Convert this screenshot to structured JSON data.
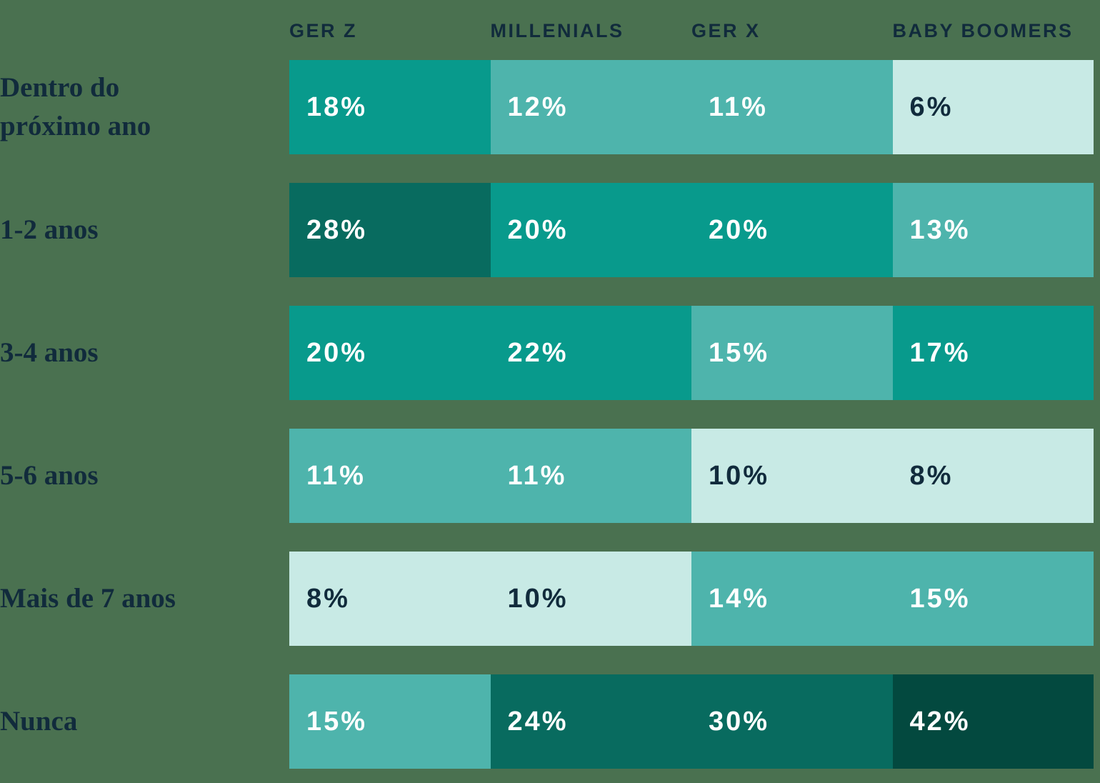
{
  "palette": {
    "background": "#4A7150",
    "ink": "#112B3C",
    "value_text_light": "#FFFFFF",
    "scale": {
      "lightest": "#C8EAE5",
      "light": "#4EB4AC",
      "medium": "#089A8C",
      "dark": "#086B5F",
      "darkest": "#03493F"
    },
    "text_on": {
      "lightest": "#112B3C",
      "light": "#FFFFFF",
      "medium": "#FFFFFF",
      "dark": "#FFFFFF",
      "darkest": "#FFFFFF"
    }
  },
  "header": {
    "columns": [
      "GER Z",
      "MILLENIALS",
      "GER X",
      "BABY BOOMERS"
    ]
  },
  "rows": [
    {
      "label": "Dentro do\npróximo ano"
    },
    {
      "label": "1-2 anos"
    },
    {
      "label": "3-4 anos"
    },
    {
      "label": "5-6 anos"
    },
    {
      "label": "Mais de 7 anos"
    },
    {
      "label": "Nunca"
    }
  ],
  "chart_data": {
    "type": "heatmap",
    "columns": [
      "GER Z",
      "MILLENIALS",
      "GER X",
      "BABY BOOMERS"
    ],
    "rows": [
      "Dentro do próximo ano",
      "1-2 anos",
      "3-4 anos",
      "5-6 anos",
      "Mais de 7 anos",
      "Nunca"
    ],
    "unit": "%",
    "values": [
      [
        18,
        12,
        11,
        6
      ],
      [
        28,
        20,
        20,
        13
      ],
      [
        20,
        22,
        15,
        17
      ],
      [
        11,
        11,
        10,
        8
      ],
      [
        8,
        10,
        14,
        15
      ],
      [
        15,
        24,
        30,
        42
      ]
    ],
    "color_bins": [
      {
        "max": 10,
        "tone": "lightest"
      },
      {
        "max": 16,
        "tone": "light"
      },
      {
        "max": 23,
        "tone": "medium"
      },
      {
        "max": 35,
        "tone": "dark"
      },
      {
        "max": 100,
        "tone": "darkest"
      }
    ],
    "legend": "none",
    "grid": "off"
  }
}
